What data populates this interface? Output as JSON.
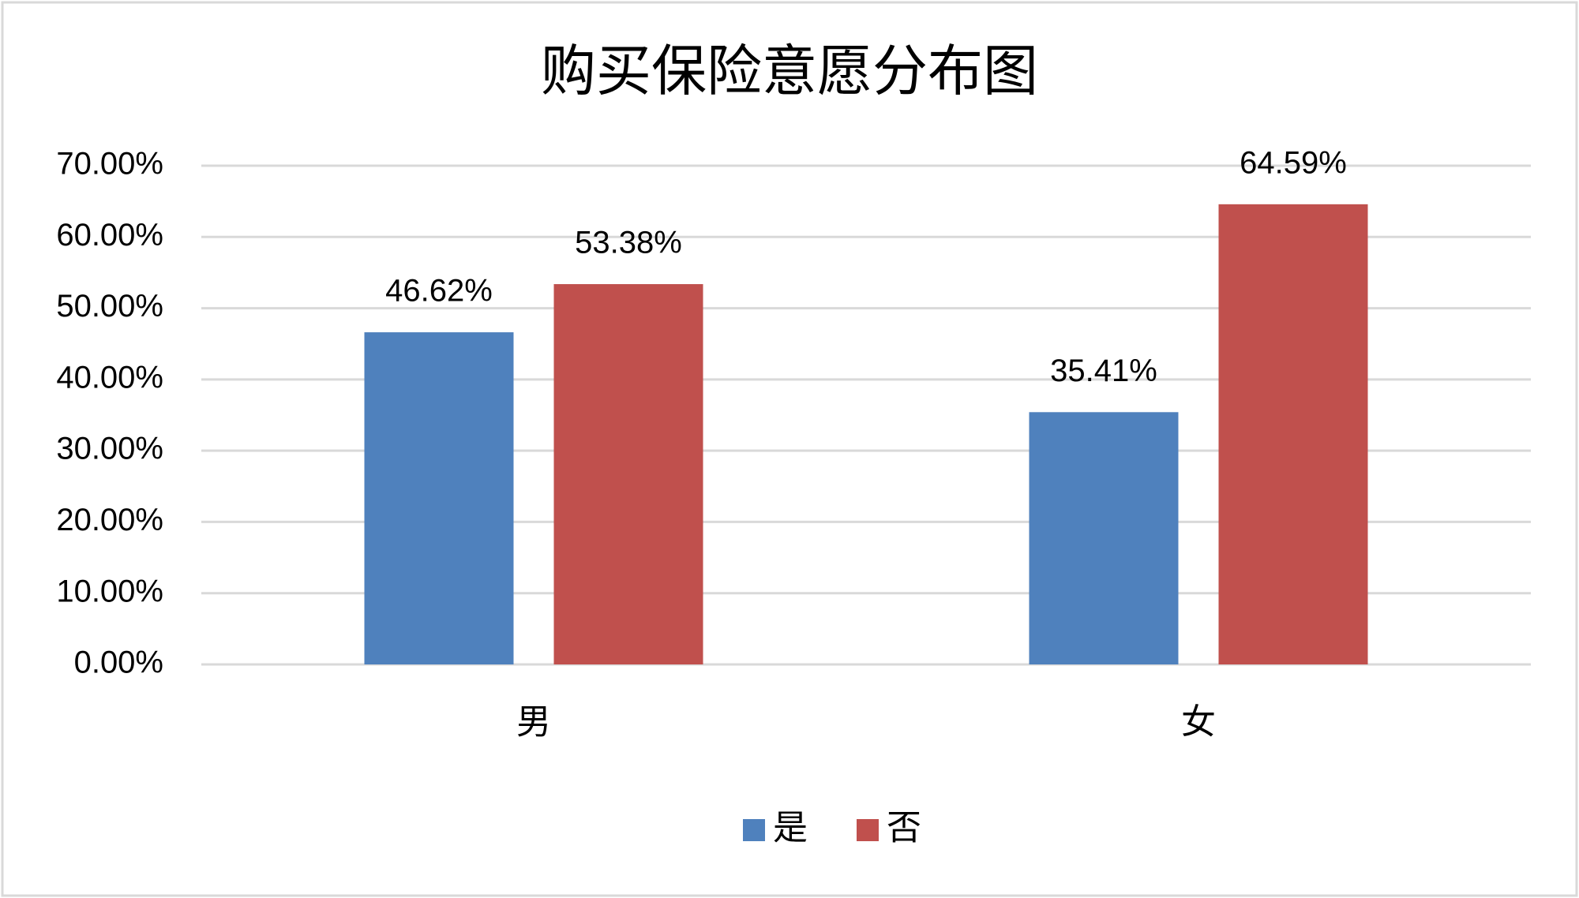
{
  "chart_data": {
    "type": "bar",
    "title": "购买保险意愿分布图",
    "categories": [
      "男",
      "女"
    ],
    "series": [
      {
        "name": "是",
        "color": "#4f81bd",
        "values": [
          46.62,
          35.41
        ],
        "value_labels": [
          "46.62%",
          "35.41%"
        ]
      },
      {
        "name": "否",
        "color": "#c0504d",
        "values": [
          53.38,
          64.59
        ],
        "value_labels": [
          "53.38%",
          "64.59%"
        ]
      }
    ],
    "ylim": [
      0,
      70
    ],
    "yticks": [
      {
        "value": 0,
        "label": "0.00%"
      },
      {
        "value": 10,
        "label": "10.00%"
      },
      {
        "value": 20,
        "label": "20.00%"
      },
      {
        "value": 30,
        "label": "30.00%"
      },
      {
        "value": 40,
        "label": "40.00%"
      },
      {
        "value": 50,
        "label": "50.00%"
      },
      {
        "value": 60,
        "label": "60.00%"
      },
      {
        "value": 70,
        "label": "70.00%"
      }
    ],
    "grid": true,
    "legend": "bottom"
  }
}
